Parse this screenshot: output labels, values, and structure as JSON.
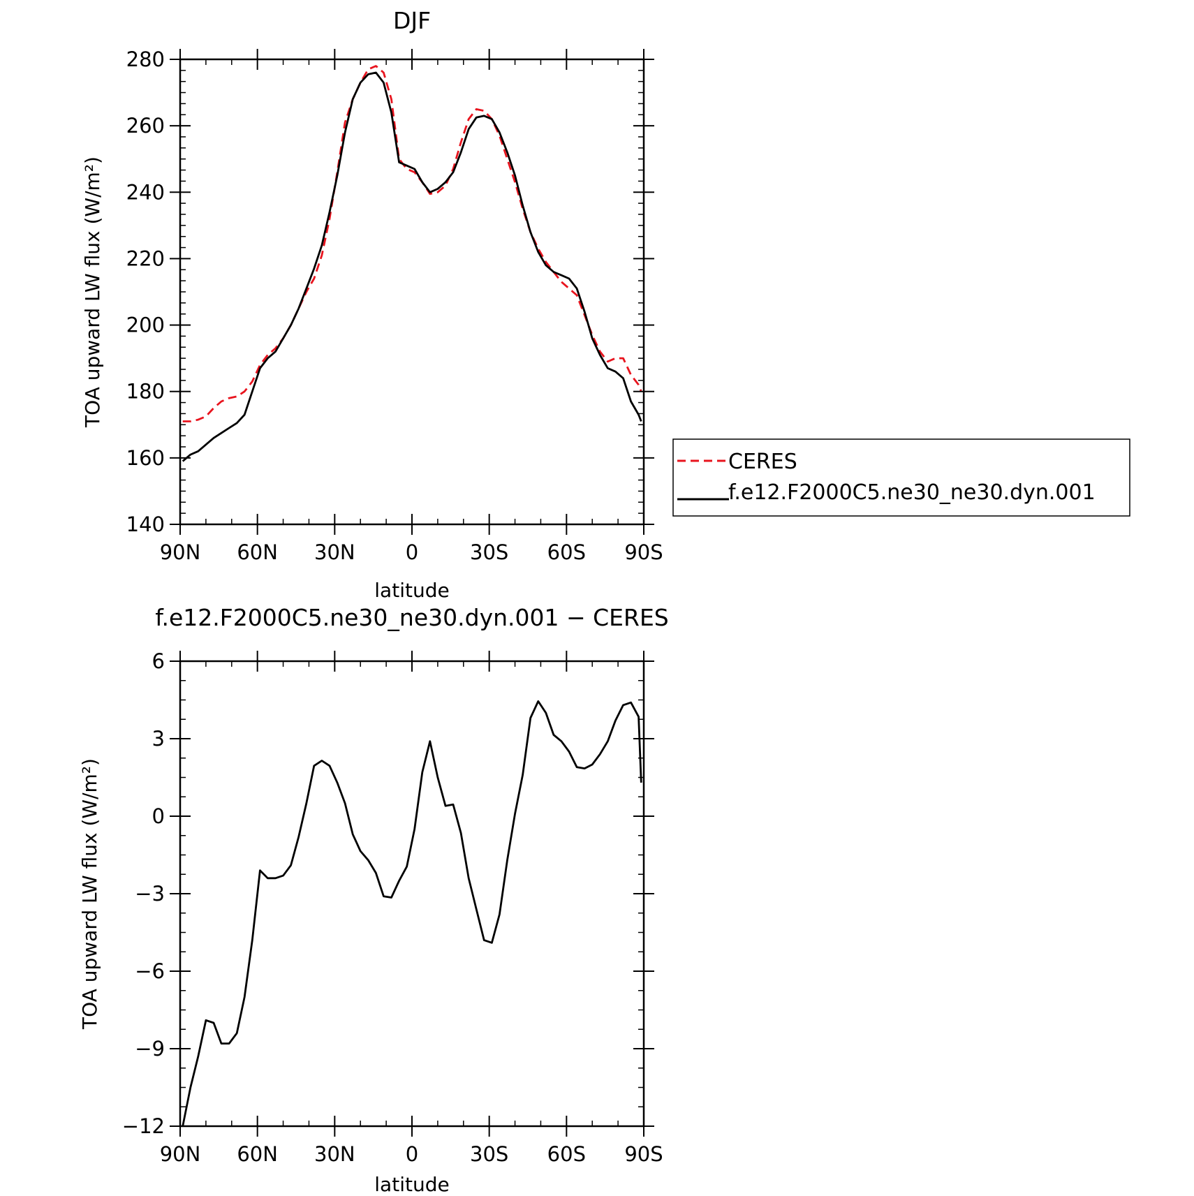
{
  "chart_data": [
    {
      "type": "line",
      "title": "DJF",
      "xlabel": "latitude",
      "ylabel": "TOA upward LW flux (W/m²)",
      "xlim": [
        -90,
        90
      ],
      "ylim": [
        140,
        280
      ],
      "x_ticks": [
        {
          "value": -90,
          "label": "90N"
        },
        {
          "value": -60,
          "label": "60N"
        },
        {
          "value": -30,
          "label": "30N"
        },
        {
          "value": 0,
          "label": "0"
        },
        {
          "value": 30,
          "label": "30S"
        },
        {
          "value": 60,
          "label": "60S"
        },
        {
          "value": 90,
          "label": "90S"
        }
      ],
      "y_ticks": [
        {
          "value": 140,
          "label": "140"
        },
        {
          "value": 160,
          "label": "160"
        },
        {
          "value": 180,
          "label": "180"
        },
        {
          "value": 200,
          "label": "200"
        },
        {
          "value": 220,
          "label": "220"
        },
        {
          "value": 240,
          "label": "240"
        },
        {
          "value": 260,
          "label": "260"
        },
        {
          "value": 280,
          "label": "280"
        }
      ],
      "legend": "right",
      "series": [
        {
          "name": "CERES",
          "color": "#e8141e",
          "dash": "dashed",
          "x": [
            -89,
            -86,
            -83,
            -80,
            -77,
            -74,
            -71,
            -68,
            -65,
            -62,
            -59,
            -56,
            -53,
            -50,
            -47,
            -44,
            -41,
            -38,
            -35,
            -32,
            -29,
            -26,
            -23,
            -20,
            -17,
            -14,
            -11,
            -8,
            -5,
            -2,
            1,
            4,
            7,
            10,
            13,
            16,
            19,
            22,
            25,
            28,
            31,
            34,
            37,
            40,
            43,
            46,
            49,
            52,
            55,
            58,
            61,
            64,
            67,
            70,
            73,
            76,
            79,
            82,
            85,
            88,
            89
          ],
          "y": [
            171,
            171,
            171.5,
            172.5,
            175,
            177,
            178,
            178.5,
            180,
            183,
            188,
            191,
            193,
            196,
            200,
            205,
            210,
            214,
            221,
            232,
            246,
            261,
            268,
            273,
            277,
            278,
            276,
            268,
            250,
            247,
            246,
            243,
            239.5,
            240,
            242,
            247,
            255,
            262,
            265,
            264.5,
            262,
            257,
            250,
            243,
            235,
            228,
            223,
            219,
            216,
            213,
            211,
            209,
            203,
            197,
            192,
            189,
            190,
            190,
            185,
            182,
            180
          ]
        },
        {
          "name": "f.e12.F2000C5.ne30_ne30.dyn.001",
          "color": "#000000",
          "dash": "solid",
          "x": [
            -89,
            -86,
            -83,
            -80,
            -77,
            -74,
            -71,
            -68,
            -65,
            -62,
            -59,
            -56,
            -53,
            -50,
            -47,
            -44,
            -41,
            -38,
            -35,
            -32,
            -29,
            -26,
            -23,
            -20,
            -17,
            -14,
            -11,
            -8,
            -5,
            -2,
            1,
            4,
            7,
            10,
            13,
            16,
            19,
            22,
            25,
            28,
            31,
            34,
            37,
            40,
            43,
            46,
            49,
            52,
            55,
            58,
            61,
            64,
            67,
            70,
            73,
            76,
            79,
            82,
            85,
            88,
            89
          ],
          "y": [
            159,
            161,
            162,
            164,
            166,
            167.5,
            169,
            170.5,
            173,
            180,
            187,
            190,
            192,
            196,
            200,
            205,
            211,
            217,
            224,
            234,
            245,
            258,
            268,
            273,
            275.5,
            276,
            273,
            264,
            249,
            248,
            247,
            243,
            240,
            241,
            243,
            246,
            252,
            259,
            262.5,
            263,
            262,
            258,
            252,
            245,
            236,
            228,
            222,
            218,
            216,
            215,
            214,
            211,
            204,
            196,
            191,
            187,
            186,
            184,
            177,
            173,
            171
          ]
        }
      ]
    },
    {
      "type": "line",
      "title": "f.e12.F2000C5.ne30_ne30.dyn.001 − CERES",
      "xlabel": "latitude",
      "ylabel": "TOA upward LW flux (W/m²)",
      "xlim": [
        -90,
        90
      ],
      "ylim": [
        -12,
        6
      ],
      "x_ticks": [
        {
          "value": -90,
          "label": "90N"
        },
        {
          "value": -60,
          "label": "60N"
        },
        {
          "value": -30,
          "label": "30N"
        },
        {
          "value": 0,
          "label": "0"
        },
        {
          "value": 30,
          "label": "30S"
        },
        {
          "value": 60,
          "label": "60S"
        },
        {
          "value": 90,
          "label": "90S"
        }
      ],
      "y_ticks": [
        {
          "value": -12,
          "label": "−12"
        },
        {
          "value": -9,
          "label": "−9"
        },
        {
          "value": -6,
          "label": "−6"
        },
        {
          "value": -3,
          "label": "−3"
        },
        {
          "value": 0,
          "label": "0"
        },
        {
          "value": 3,
          "label": "3"
        },
        {
          "value": 6,
          "label": "6"
        }
      ],
      "series": [
        {
          "color": "#000000",
          "dash": "solid",
          "x": [
            -89,
            -86,
            -83,
            -80,
            -77,
            -74,
            -71,
            -68,
            -65,
            -62,
            -59,
            -56,
            -53,
            -50,
            -47,
            -44,
            -41,
            -38,
            -35,
            -32,
            -29,
            -26,
            -23,
            -20,
            -17,
            -14,
            -11,
            -8,
            -5,
            -2,
            1,
            4,
            7,
            10,
            13,
            16,
            19,
            22,
            25,
            28,
            31,
            34,
            37,
            40,
            43,
            46,
            49,
            52,
            55,
            58,
            61,
            64,
            67,
            70,
            73,
            76,
            79,
            82,
            85,
            88,
            89
          ],
          "y": [
            -12,
            -10.5,
            -9.3,
            -7.9,
            -8,
            -8.8,
            -8.8,
            -8.4,
            -7,
            -4.8,
            -2.1,
            -2.4,
            -2.4,
            -2.3,
            -1.9,
            -0.8,
            0.5,
            1.95,
            2.15,
            1.95,
            1.3,
            0.5,
            -0.7,
            -1.35,
            -1.7,
            -2.2,
            -3.1,
            -3.15,
            -2.5,
            -1.95,
            -0.5,
            1.7,
            2.9,
            1.5,
            0.4,
            0.45,
            -0.65,
            -2.4,
            -3.6,
            -4.8,
            -4.9,
            -3.8,
            -1.7,
            0.1,
            1.6,
            3.8,
            4.45,
            4,
            3.15,
            2.9,
            2.5,
            1.9,
            1.85,
            2,
            2.4,
            2.9,
            3.7,
            4.3,
            4.4,
            3.85,
            1.3
          ]
        }
      ]
    }
  ]
}
